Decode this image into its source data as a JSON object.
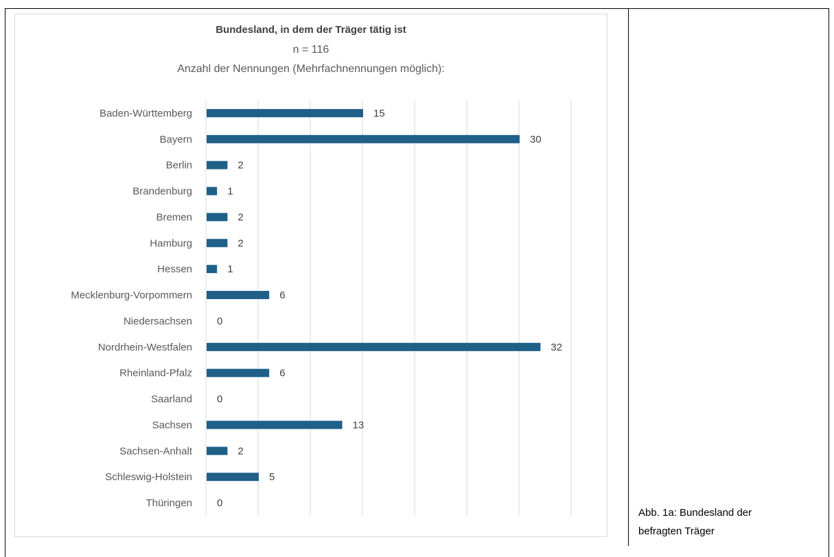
{
  "chart_data": {
    "type": "bar",
    "orientation": "horizontal",
    "title": "Bundesland, in dem der Träger tätig ist",
    "subtitle_lines": [
      "n = 116",
      "Anzahl der Nennungen (Mehrfachnennungen möglich):"
    ],
    "categories": [
      "Baden-Württemberg",
      "Bayern",
      "Berlin",
      "Brandenburg",
      "Bremen",
      "Hamburg",
      "Hessen",
      "Mecklenburg-Vorpommern",
      "Niedersachsen",
      "Nordrhein-Westfalen",
      "Rheinland-Pfalz",
      "Saarland",
      "Sachsen",
      "Sachsen-Anhalt",
      "Schleswig-Holstein",
      "Thüringen"
    ],
    "values": [
      15,
      30,
      2,
      1,
      2,
      2,
      1,
      6,
      0,
      32,
      6,
      0,
      13,
      2,
      5,
      0
    ],
    "xlim": [
      0,
      35
    ],
    "grid": true,
    "data_labels": true,
    "bar_color": "#1f6088"
  },
  "caption": {
    "line1": "Abb. 1a: Bundesland der",
    "line2": "befragten Träger"
  }
}
